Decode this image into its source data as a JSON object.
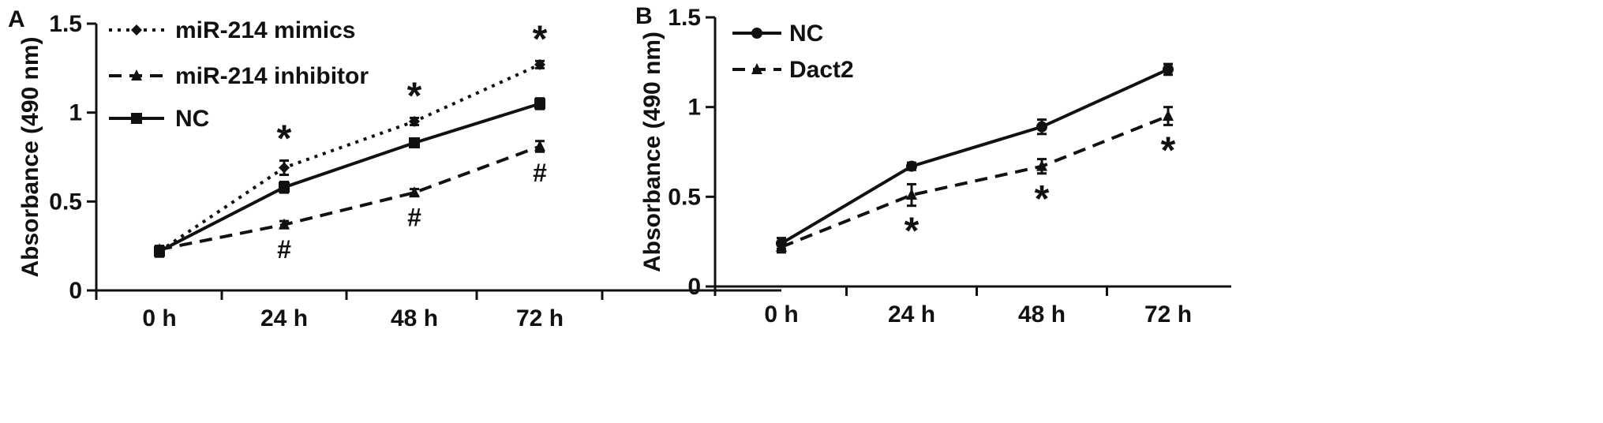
{
  "chart_data": [
    {
      "panel_label": "A",
      "type": "line",
      "categories": [
        "0 h",
        "24 h",
        "48 h",
        "72 h"
      ],
      "ylabel": "Absorbance (490 nm)",
      "ylim": [
        0,
        1.5
      ],
      "yticks": [
        "0",
        "0.5",
        "1",
        "1.5"
      ],
      "grid": false,
      "legend": "top-left",
      "series": [
        {
          "name": "miR-214 mimics",
          "values": [
            0.22,
            0.69,
            0.95,
            1.27
          ],
          "errors": [
            0.02,
            0.04,
            0.02,
            0.02
          ],
          "dash": "dotted",
          "marker": "diamond",
          "annotations": [
            "",
            "*",
            "*",
            "*"
          ],
          "annotation_position": "above"
        },
        {
          "name": "miR-214 inhibitor",
          "values": [
            0.23,
            0.37,
            0.55,
            0.81
          ],
          "errors": [
            0.02,
            0.02,
            0.02,
            0.03
          ],
          "dash": "dashed",
          "marker": "triangle",
          "annotations": [
            "",
            "#",
            "#",
            "#"
          ],
          "annotation_position": "below"
        },
        {
          "name": "NC",
          "values": [
            0.22,
            0.58,
            0.83,
            1.05
          ],
          "errors": [
            0.03,
            0.03,
            0.02,
            0.03
          ],
          "dash": "solid",
          "marker": "square",
          "annotations": [
            "",
            "",
            "",
            ""
          ],
          "annotation_position": "above"
        }
      ]
    },
    {
      "panel_label": "B",
      "type": "line",
      "categories": [
        "0 h",
        "24 h",
        "48 h",
        "72 h"
      ],
      "ylabel": "Absorbance (490 nm)",
      "ylim": [
        0,
        1.5
      ],
      "yticks": [
        "0",
        "0.5",
        "1",
        "1.5"
      ],
      "grid": false,
      "legend": "top-left",
      "series": [
        {
          "name": "NC",
          "values": [
            0.24,
            0.67,
            0.89,
            1.21
          ],
          "errors": [
            0.03,
            0.02,
            0.04,
            0.03
          ],
          "dash": "solid",
          "marker": "circle",
          "annotations": [
            "",
            "",
            "",
            ""
          ],
          "annotation_position": "above"
        },
        {
          "name": "Dact2",
          "values": [
            0.22,
            0.51,
            0.67,
            0.95
          ],
          "errors": [
            0.03,
            0.06,
            0.04,
            0.05
          ],
          "dash": "dashed",
          "marker": "triangle",
          "annotations": [
            "",
            "*",
            "*",
            "*"
          ],
          "annotation_position": "below"
        }
      ]
    }
  ]
}
